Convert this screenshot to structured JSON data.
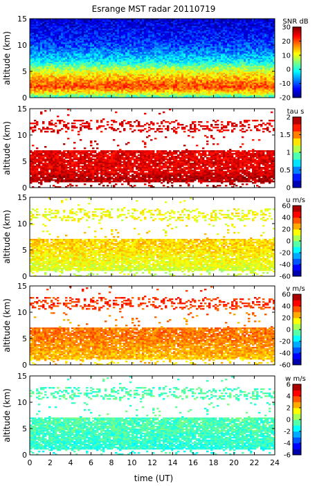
{
  "title": "Esrange MST radar 20110719",
  "xlabel": "time (UT)",
  "chart_data": [
    {
      "type": "heatmap",
      "ylabel": "altitude (km)",
      "colorbar_label": "SNR dB",
      "xlim": [
        0,
        24
      ],
      "ylim": [
        0,
        15
      ],
      "x_ticks": [
        0,
        2,
        4,
        6,
        8,
        10,
        12,
        14,
        16,
        18,
        20,
        22,
        24
      ],
      "y_ticks": [
        0,
        5,
        10,
        15
      ],
      "color_range": [
        -20,
        30
      ],
      "colorbar_ticks": [
        30,
        20,
        10,
        0,
        -10,
        -20
      ],
      "colorbar_levels": 50,
      "coverage": "full",
      "profile_altitude_km": [
        0,
        1,
        2,
        3,
        4,
        5,
        6,
        7,
        8,
        9,
        10,
        11,
        12,
        13,
        14,
        15
      ],
      "profile_value": [
        0,
        12,
        20,
        18,
        14,
        10,
        4,
        -2,
        -5,
        -8,
        -10,
        -12,
        -13,
        -14,
        -15,
        -16
      ]
    },
    {
      "type": "heatmap",
      "ylabel": "altitude (km)",
      "colorbar_label": "tau s",
      "xlim": [
        0,
        24
      ],
      "ylim": [
        0,
        15
      ],
      "x_ticks": [
        0,
        2,
        4,
        6,
        8,
        10,
        12,
        14,
        16,
        18,
        20,
        22,
        24
      ],
      "y_ticks": [
        0,
        5,
        10,
        15
      ],
      "color_range": [
        0,
        2
      ],
      "colorbar_ticks": [
        2,
        1.5,
        1,
        0.5,
        0
      ],
      "colorbar_levels": 10,
      "coverage": "sparse",
      "profile_altitude_km": [
        0,
        1,
        2,
        3,
        4,
        5,
        6,
        7,
        8,
        9,
        10,
        11,
        12,
        13,
        14,
        15
      ],
      "profile_value": [
        1.9,
        1.9,
        1.9,
        1.8,
        1.8,
        1.8,
        1.8,
        1.8,
        1.8,
        1.8,
        1.8,
        1.8,
        1.8,
        1.8,
        1.8,
        1.8
      ]
    },
    {
      "type": "heatmap",
      "ylabel": "altitude (km)",
      "colorbar_label": "u m/s",
      "xlim": [
        0,
        24
      ],
      "ylim": [
        0,
        15
      ],
      "x_ticks": [
        0,
        2,
        4,
        6,
        8,
        10,
        12,
        14,
        16,
        18,
        20,
        22,
        24
      ],
      "y_ticks": [
        0,
        5,
        10,
        15
      ],
      "color_range": [
        -60,
        60
      ],
      "colorbar_ticks": [
        60,
        40,
        20,
        0,
        -20,
        -40,
        -60
      ],
      "colorbar_levels": 12,
      "coverage": "sparse",
      "profile_altitude_km": [
        0,
        1,
        2,
        3,
        4,
        5,
        6,
        7,
        8,
        9,
        10,
        11,
        12,
        13,
        14,
        15
      ],
      "profile_value": [
        8,
        10,
        12,
        14,
        16,
        18,
        20,
        20,
        18,
        16,
        14,
        14,
        14,
        14,
        14,
        14
      ]
    },
    {
      "type": "heatmap",
      "ylabel": "altitude (km)",
      "colorbar_label": "v m/s",
      "xlim": [
        0,
        24
      ],
      "ylim": [
        0,
        15
      ],
      "x_ticks": [
        0,
        2,
        4,
        6,
        8,
        10,
        12,
        14,
        16,
        18,
        20,
        22,
        24
      ],
      "y_ticks": [
        0,
        5,
        10,
        15
      ],
      "color_range": [
        -60,
        60
      ],
      "colorbar_ticks": [
        60,
        40,
        20,
        0,
        -20,
        -40,
        -60
      ],
      "colorbar_levels": 12,
      "coverage": "sparse",
      "profile_altitude_km": [
        0,
        1,
        2,
        3,
        4,
        5,
        6,
        7,
        8,
        9,
        10,
        11,
        12,
        13,
        14,
        15
      ],
      "profile_value": [
        20,
        22,
        24,
        26,
        28,
        30,
        32,
        30,
        28,
        30,
        34,
        38,
        40,
        40,
        40,
        40
      ]
    },
    {
      "type": "heatmap",
      "ylabel": "altitude (km)",
      "colorbar_label": "w m/s",
      "xlim": [
        0,
        24
      ],
      "ylim": [
        0,
        15
      ],
      "x_ticks": [
        0,
        2,
        4,
        6,
        8,
        10,
        12,
        14,
        16,
        18,
        20,
        22,
        24
      ],
      "y_ticks": [
        0,
        5,
        10,
        15
      ],
      "color_range": [
        -6,
        6
      ],
      "colorbar_ticks": [
        6,
        4,
        2,
        0,
        -2,
        -4,
        -6
      ],
      "colorbar_levels": 12,
      "coverage": "sparse",
      "profile_altitude_km": [
        0,
        1,
        2,
        3,
        4,
        5,
        6,
        7,
        8,
        9,
        10,
        11,
        12,
        13,
        14,
        15
      ],
      "profile_value": [
        -1,
        -1,
        -1,
        -0.8,
        -0.8,
        -0.6,
        -0.6,
        -0.6,
        -0.6,
        -0.6,
        -0.6,
        -0.6,
        -0.6,
        -0.6,
        -0.6,
        -0.6
      ]
    }
  ]
}
